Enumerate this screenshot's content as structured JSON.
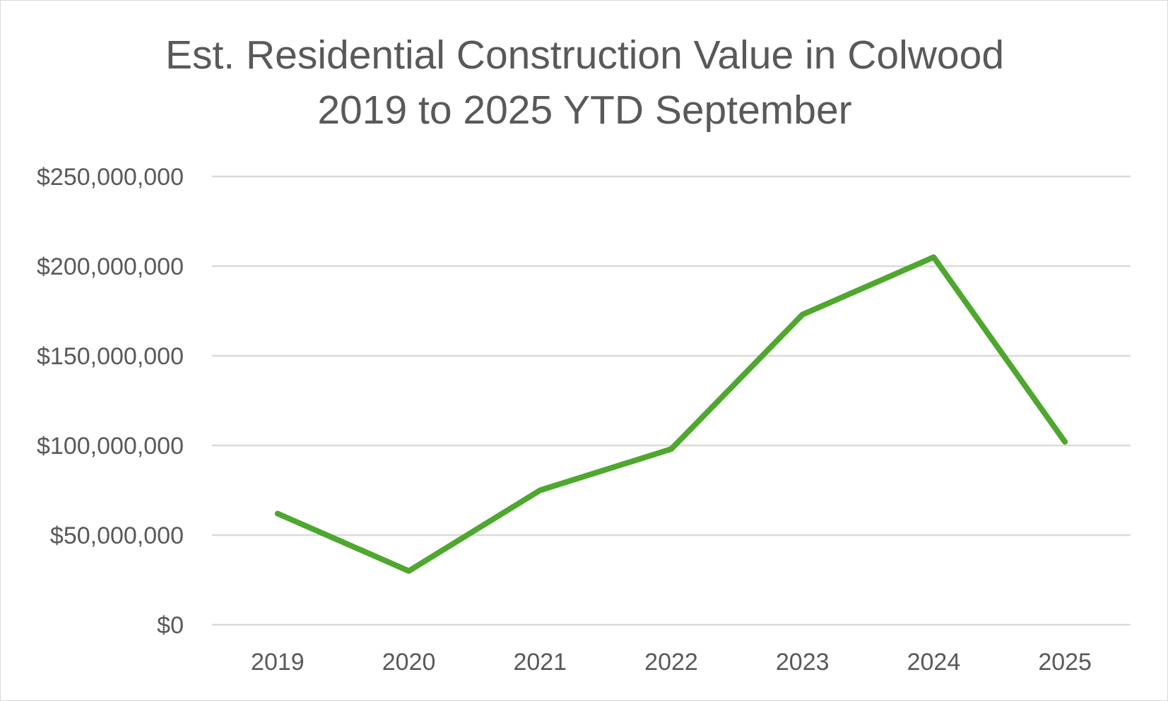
{
  "chart_data": {
    "type": "line",
    "title_line1": "Est. Residential Construction Value in Colwood",
    "title_line2": "2019 to 2025 YTD September",
    "xlabel": "",
    "ylabel": "",
    "categories": [
      "2019",
      "2020",
      "2021",
      "2022",
      "2023",
      "2024",
      "2025"
    ],
    "series": [
      {
        "color": "#4ea72e",
        "values": [
          62000000,
          30000000,
          75000000,
          98000000,
          173000000,
          205000000,
          102000000
        ]
      }
    ],
    "ylim": [
      0,
      250000000
    ],
    "yticks": [
      0,
      50000000,
      100000000,
      150000000,
      200000000,
      250000000
    ],
    "ytick_labels": [
      "$0",
      "$50,000,000",
      "$100,000,000",
      "$150,000,000",
      "$200,000,000",
      "$250,000,000"
    ],
    "grid": true,
    "legend": "none"
  }
}
